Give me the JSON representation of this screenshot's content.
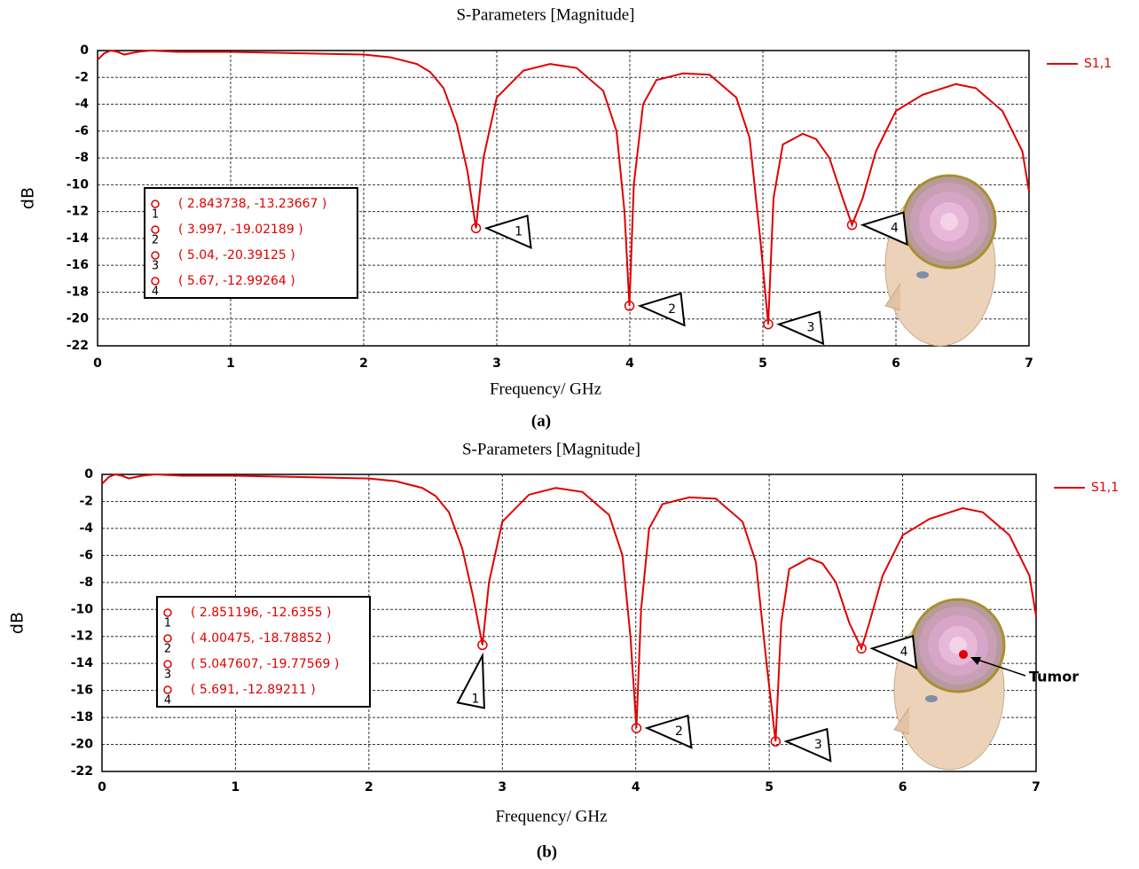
{
  "chart_data": [
    {
      "type": "line",
      "title": "S-Parameters [Magnitude]",
      "x_label": "Frequency/ GHz",
      "y_label": "dB",
      "caption": "(a)",
      "xlim": [
        0,
        7
      ],
      "ylim": [
        -22,
        0
      ],
      "xticks": [
        0,
        1,
        2,
        3,
        4,
        5,
        6,
        7
      ],
      "yticks": [
        0,
        -2,
        -4,
        -6,
        -8,
        -10,
        -12,
        -14,
        -16,
        -18,
        -20,
        -22
      ],
      "grid": true,
      "series": [
        {
          "name": "S1,1",
          "color": "#e00000",
          "x": [
            0,
            0.05,
            0.1,
            0.15,
            0.2,
            0.3,
            0.4,
            0.6,
            1.0,
            1.5,
            2.0,
            2.2,
            2.4,
            2.5,
            2.6,
            2.7,
            2.78,
            2.843738,
            2.9,
            3.0,
            3.2,
            3.4,
            3.6,
            3.8,
            3.9,
            3.96,
            3.997,
            4.03,
            4.1,
            4.2,
            4.4,
            4.6,
            4.8,
            4.9,
            4.98,
            5.04,
            5.08,
            5.15,
            5.3,
            5.4,
            5.5,
            5.6,
            5.67,
            5.75,
            5.85,
            6.0,
            6.2,
            6.45,
            6.6,
            6.8,
            6.95,
            7.0
          ],
          "values": [
            -0.7,
            -0.2,
            0,
            -0.1,
            -0.3,
            -0.1,
            0,
            -0.1,
            -0.1,
            -0.2,
            -0.3,
            -0.5,
            -1.0,
            -1.6,
            -2.8,
            -5.5,
            -9,
            -13.23667,
            -8,
            -3.5,
            -1.5,
            -1.0,
            -1.3,
            -3,
            -6,
            -12,
            -19.02189,
            -10,
            -4,
            -2.2,
            -1.7,
            -1.8,
            -3.5,
            -6.5,
            -14,
            -20.39125,
            -11,
            -7,
            -6.2,
            -6.6,
            -8,
            -11,
            -12.99264,
            -11,
            -7.5,
            -4.5,
            -3.3,
            -2.5,
            -2.8,
            -4.5,
            -7.5,
            -10.5
          ]
        }
      ],
      "markers": [
        {
          "label": "1",
          "x": 2.843738,
          "y": -13.23667,
          "text": "( 2.843738, -13.23667 )"
        },
        {
          "label": "2",
          "x": 3.997,
          "y": -19.02189,
          "text": "( 3.997, -19.02189 )"
        },
        {
          "label": "3",
          "x": 5.04,
          "y": -20.39125,
          "text": "( 5.04, -20.39125 )"
        },
        {
          "label": "4",
          "x": 5.67,
          "y": -12.99264,
          "text": "( 5.67, -12.99264 )"
        }
      ]
    },
    {
      "type": "line",
      "title": "S-Parameters [Magnitude]",
      "x_label": "Frequency/ GHz",
      "y_label": "dB",
      "caption": "(b)",
      "xlim": [
        0,
        7
      ],
      "ylim": [
        -22,
        0
      ],
      "xticks": [
        0,
        1,
        2,
        3,
        4,
        5,
        6,
        7
      ],
      "yticks": [
        0,
        -2,
        -4,
        -6,
        -8,
        -10,
        -12,
        -14,
        -16,
        -18,
        -20,
        -22
      ],
      "grid": true,
      "series": [
        {
          "name": "S1,1",
          "color": "#e00000",
          "x": [
            0,
            0.05,
            0.1,
            0.15,
            0.2,
            0.3,
            0.4,
            0.6,
            1.0,
            1.5,
            2.0,
            2.2,
            2.4,
            2.5,
            2.6,
            2.7,
            2.78,
            2.851196,
            2.9,
            3.0,
            3.2,
            3.4,
            3.6,
            3.8,
            3.9,
            3.96,
            4.00475,
            4.04,
            4.1,
            4.2,
            4.4,
            4.6,
            4.8,
            4.9,
            4.98,
            5.047607,
            5.09,
            5.15,
            5.3,
            5.4,
            5.5,
            5.6,
            5.691,
            5.75,
            5.85,
            6.0,
            6.2,
            6.45,
            6.6,
            6.8,
            6.95,
            7.0
          ],
          "values": [
            -0.7,
            -0.2,
            0,
            -0.1,
            -0.3,
            -0.1,
            0,
            -0.1,
            -0.1,
            -0.2,
            -0.3,
            -0.5,
            -1.0,
            -1.6,
            -2.8,
            -5.5,
            -9,
            -12.6355,
            -8,
            -3.5,
            -1.5,
            -1.0,
            -1.3,
            -3,
            -6,
            -12,
            -18.78852,
            -10,
            -4,
            -2.2,
            -1.7,
            -1.8,
            -3.5,
            -6.5,
            -14,
            -19.77569,
            -11,
            -7,
            -6.2,
            -6.6,
            -8,
            -11,
            -12.89211,
            -11,
            -7.5,
            -4.5,
            -3.3,
            -2.5,
            -2.8,
            -4.5,
            -7.5,
            -10.5
          ]
        }
      ],
      "markers": [
        {
          "label": "1",
          "x": 2.851196,
          "y": -12.6355,
          "text": "( 2.851196, -12.6355 )"
        },
        {
          "label": "2",
          "x": 4.00475,
          "y": -18.78852,
          "text": "( 4.00475, -18.78852 )"
        },
        {
          "label": "3",
          "x": 5.047607,
          "y": -19.77569,
          "text": "( 5.047607, -19.77569 )"
        },
        {
          "label": "4",
          "x": 5.691,
          "y": -12.89211,
          "text": "( 5.691, -12.89211 )"
        }
      ],
      "annotations": [
        {
          "text": "Tumor"
        }
      ]
    }
  ]
}
